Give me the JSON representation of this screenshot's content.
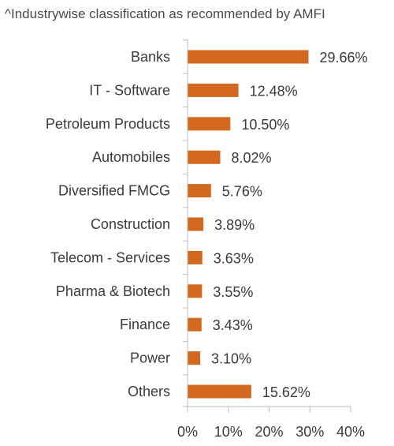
{
  "chart_data": {
    "type": "bar",
    "orientation": "horizontal",
    "subtitle": "^Industrywise classification as recommended by AMFI",
    "categories": [
      "Banks",
      "IT - Software",
      "Petroleum Products",
      "Automobiles",
      "Diversified FMCG",
      "Construction",
      "Telecom - Services",
      "Pharma & Biotech",
      "Finance",
      "Power",
      "Others"
    ],
    "values": [
      29.66,
      12.48,
      10.5,
      8.02,
      5.76,
      3.89,
      3.63,
      3.55,
      3.43,
      3.1,
      15.62
    ],
    "value_labels": [
      "29.66%",
      "12.48%",
      "10.50%",
      "8.02%",
      "5.76%",
      "3.89%",
      "3.63%",
      "3.55%",
      "3.43%",
      "3.10%",
      "15.62%"
    ],
    "xlim": [
      0,
      40
    ],
    "xticks": [
      0,
      10,
      20,
      30,
      40
    ],
    "xtick_labels": [
      "0%",
      "10%",
      "20%",
      "30%",
      "40%"
    ],
    "xlabel": "",
    "ylabel": "",
    "grid": false,
    "bar_color": "#d2691e"
  }
}
